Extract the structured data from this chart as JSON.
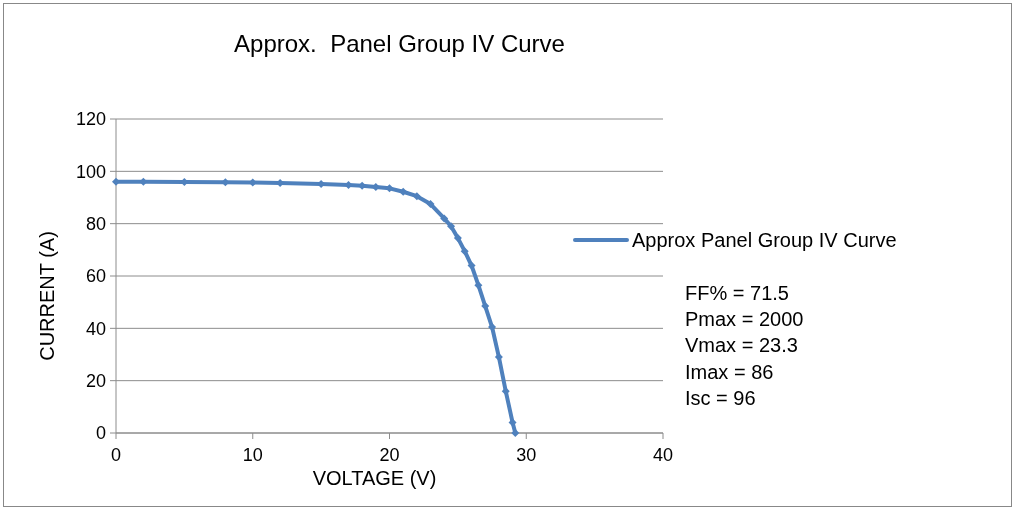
{
  "chart_data": {
    "type": "line",
    "title": "Approx.  Panel Group IV Curve",
    "xlabel": "VOLTAGE (V)",
    "ylabel": "CURRENT (A)",
    "x": [
      0,
      2,
      5,
      8,
      10,
      12,
      15,
      17,
      18,
      19,
      20,
      21,
      22,
      23,
      24,
      24.5,
      25,
      25.5,
      26,
      26.5,
      27,
      27.5,
      28,
      28.5,
      29,
      29.2
    ],
    "series": [
      {
        "name": "Approx Panel Group IV Curve",
        "color": "#4f81bd",
        "values": [
          96,
          96,
          95.9,
          95.8,
          95.7,
          95.5,
          95.2,
          94.8,
          94.5,
          94,
          93.5,
          92.2,
          90.5,
          87.5,
          82,
          79,
          74.5,
          69.5,
          64,
          56.5,
          48.5,
          40.5,
          29,
          16,
          4,
          0
        ]
      }
    ],
    "xlim": [
      0,
      40
    ],
    "xticks": [
      0,
      10,
      20,
      30,
      40
    ],
    "ylim": [
      0,
      120
    ],
    "yticks": [
      0,
      20,
      40,
      60,
      80,
      100,
      120
    ],
    "grid": "y",
    "legend": "right",
    "marker": "diamond",
    "line_style": "solid",
    "annotations": [
      "FF% = 71.5",
      "Pmax = 2000",
      "Vmax = 23.3",
      "Imax = 86",
      "Isc = 96"
    ]
  }
}
